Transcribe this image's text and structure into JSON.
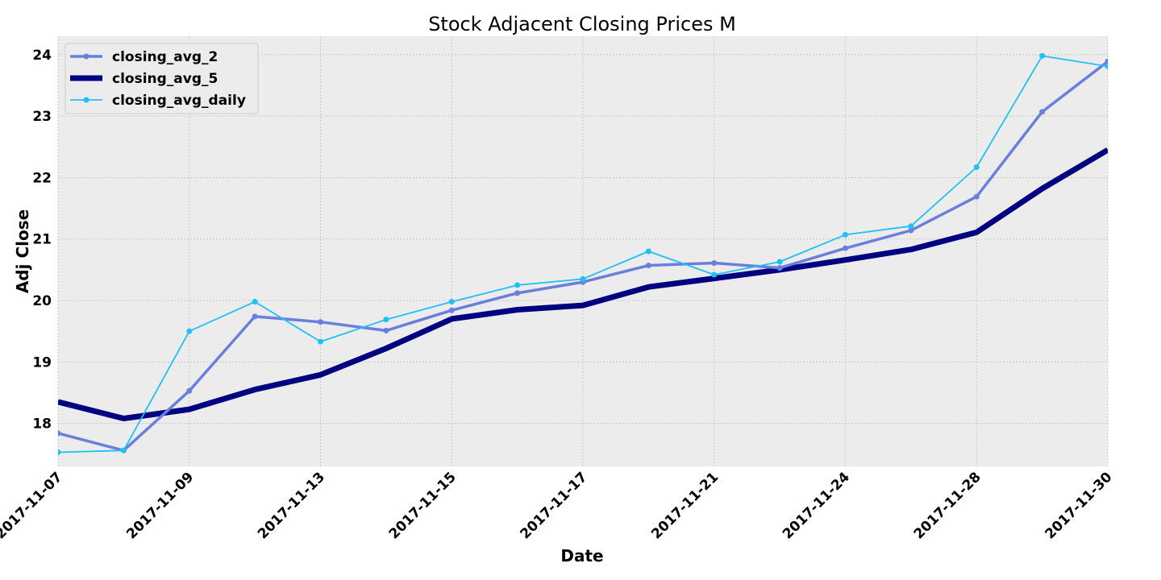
{
  "chart_data": {
    "type": "line",
    "title": "Stock Adjacent Closing Prices M",
    "xlabel": "Date",
    "ylabel": "Adj Close",
    "x": [
      "2017-11-07",
      "2017-11-08",
      "2017-11-09",
      "2017-11-10",
      "2017-11-13",
      "2017-11-14",
      "2017-11-15",
      "2017-11-16",
      "2017-11-17",
      "2017-11-20",
      "2017-11-21",
      "2017-11-22",
      "2017-11-24",
      "2017-11-27",
      "2017-11-28",
      "2017-11-29",
      "2017-11-30"
    ],
    "xticks": [
      "2017-11-07",
      "2017-11-09",
      "2017-11-13",
      "2017-11-15",
      "2017-11-17",
      "2017-11-21",
      "2017-11-24",
      "2017-11-28",
      "2017-11-30"
    ],
    "yticks": [
      18,
      19,
      20,
      21,
      22,
      23,
      24
    ],
    "ylim": [
      17.3,
      24.3
    ],
    "grid": true,
    "legend_position": "top-left",
    "series": [
      {
        "name": "closing_avg_2",
        "color": "#6a7fdb",
        "marker": true,
        "values": [
          17.84,
          17.56,
          18.53,
          19.74,
          19.65,
          19.51,
          19.84,
          20.12,
          20.3,
          20.57,
          20.61,
          20.53,
          20.85,
          21.14,
          21.69,
          23.07,
          23.89
        ]
      },
      {
        "name": "closing_avg_5",
        "color": "#000080",
        "marker": false,
        "values": [
          18.35,
          18.08,
          18.23,
          18.55,
          18.79,
          19.22,
          19.7,
          19.85,
          19.92,
          20.22,
          20.36,
          20.5,
          20.66,
          20.83,
          21.11,
          21.82,
          22.45
        ]
      },
      {
        "name": "closing_avg_daily",
        "color": "#1ec0f5",
        "marker": true,
        "values": [
          17.53,
          17.56,
          19.5,
          19.98,
          19.33,
          19.69,
          19.98,
          20.25,
          20.35,
          20.8,
          20.42,
          20.63,
          21.07,
          21.21,
          22.17,
          23.98,
          23.81
        ]
      }
    ]
  }
}
